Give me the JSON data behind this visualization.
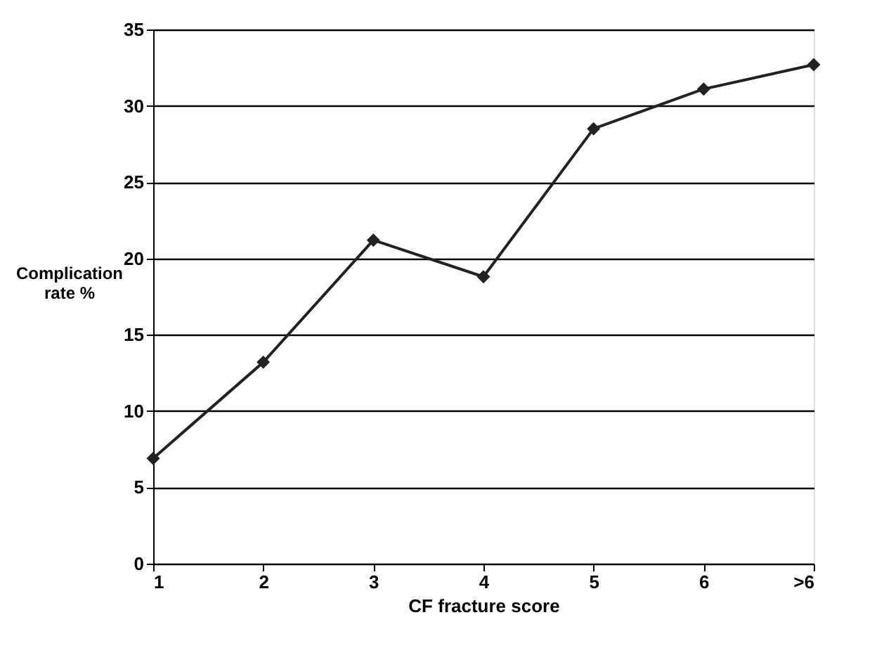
{
  "chart_data": {
    "type": "line",
    "xlabel": "CF fracture score",
    "ylabel": "Complication rate %",
    "categories": [
      "1",
      "2",
      "3",
      "4",
      "5",
      "6",
      ">6"
    ],
    "values": [
      6.9,
      13.2,
      21.2,
      18.8,
      28.5,
      31.1,
      32.7
    ],
    "color": "#222222",
    "marker": "diamond",
    "line_style": "solid",
    "ylim": [
      0,
      35
    ],
    "yticks": [
      0,
      5,
      10,
      15,
      20,
      25,
      30,
      35
    ],
    "grid": "y"
  }
}
